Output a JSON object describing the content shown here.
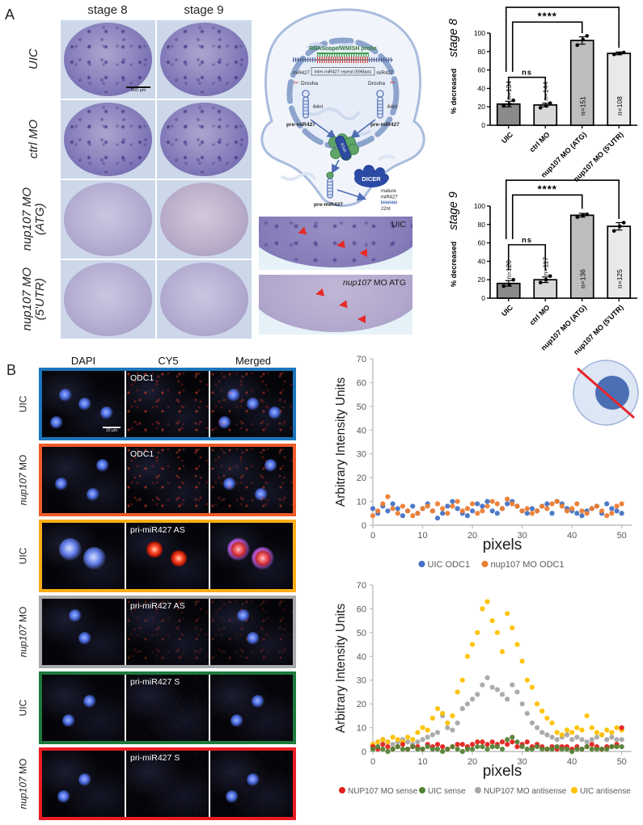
{
  "panel_a": {
    "label": "A",
    "col_headers": [
      "stage 8",
      "stage 9"
    ],
    "row_labels": [
      [
        "UIC"
      ],
      [
        "ctrl MO"
      ],
      [
        "nup107 MO",
        "(ATG)"
      ],
      [
        "nup107 MO",
        "(5'UTR)"
      ]
    ],
    "scale_bar": "500 μm",
    "diagram": {
      "probe_label": "RNAScope/WMISH probe",
      "mir_left": "miR427",
      "repeat_label": "Inter-miR427 repeat (596bps)",
      "mir_right": "miR427",
      "scissors_glyph": "✂",
      "drosha_left": "Drosha",
      "drosha_right": "Drosha",
      "nt64_left": "64nt",
      "nt64_right": "64nt",
      "premir_left": "pre-miR427",
      "premir_right": "pre-miR427",
      "exportin": "XPO5",
      "premir_cyto": "pre-miR427",
      "dicer": "DICER",
      "mature_1": "mature",
      "mature_2": "miR427",
      "nt22": "22nt"
    },
    "insets": [
      {
        "title": "UIC"
      },
      {
        "title_italic": "nup107",
        "title_rest": " MO ATG"
      }
    ]
  },
  "panel_b": {
    "label": "B",
    "col_headers": [
      "DAPI",
      "CY5",
      "Merged"
    ],
    "scale_bar": "10 μm",
    "rows": [
      {
        "label": "UIC",
        "border": "#1b75bc",
        "probe": "ODC1"
      },
      {
        "label": "nup107 MO",
        "border": "#f15a29",
        "probe": "ODC1"
      },
      {
        "label": "UIC",
        "border": "#fbae17",
        "probe": "pri-miR427 AS"
      },
      {
        "label": "nup107 MO",
        "border": "#a7a9ac",
        "probe": "pri-miR427 AS"
      },
      {
        "label": "UIC",
        "border": "#1e7a3c",
        "probe": "pri-miR427 S"
      },
      {
        "label": "nup107 MO",
        "border": "#ec1c24",
        "probe": "pri-miR427 S"
      }
    ]
  },
  "chart_data": [
    {
      "id": "stage8",
      "type": "bar",
      "title": "stage 8",
      "ylabel": "% decreased",
      "ylim": [
        0,
        100
      ],
      "yticks": [
        0,
        20,
        40,
        60,
        80,
        100
      ],
      "categories": [
        "UIC",
        "ctrl MO",
        "nup107 MO (ATG)",
        "nup107 MO (5'UTR)"
      ],
      "values": [
        23,
        22,
        92,
        78
      ],
      "errors": [
        3,
        2,
        4,
        1.5
      ],
      "points": [
        [
          21,
          23,
          27
        ],
        [
          19,
          21,
          24
        ],
        [
          87,
          93,
          97
        ],
        [
          77,
          78,
          79
        ]
      ],
      "n_labels": [
        "n=134",
        "n=144",
        "n=151",
        "n=108"
      ],
      "bar_colors": [
        "#8a8a8a",
        "#d8d8d8",
        "#bdbdbd",
        "#e9e9e9"
      ],
      "comparisons": [
        {
          "from": 0,
          "to": 1,
          "label": "ns",
          "y": 52,
          "drop_from": 28,
          "drop_to": 28
        },
        {
          "from": 0,
          "to": 2,
          "label": "****",
          "y": 112,
          "drop_from": 58,
          "drop_to": 100
        },
        {
          "from": 0,
          "to": 3,
          "label": "****",
          "y": 128,
          "drop_from": 58,
          "drop_to": 84
        }
      ]
    },
    {
      "id": "stage9",
      "type": "bar",
      "title": "stage 9",
      "ylabel": "% decreased",
      "ylim": [
        0,
        100
      ],
      "yticks": [
        0,
        20,
        40,
        60,
        80,
        100
      ],
      "categories": [
        "UIC",
        "ctrl MO",
        "nup107 MO (ATG)",
        "nup107 MO (5'UTR)"
      ],
      "values": [
        16,
        20,
        90,
        78
      ],
      "errors": [
        3,
        3,
        2,
        4
      ],
      "points": [
        [
          13,
          15,
          20
        ],
        [
          17,
          20,
          24
        ],
        [
          88,
          90,
          91
        ],
        [
          73,
          78,
          82
        ]
      ],
      "n_labels": [
        "n=120",
        "n=117",
        "n=136",
        "n=125"
      ],
      "bar_colors": [
        "#8a8a8a",
        "#d8d8d8",
        "#bdbdbd",
        "#e9e9e9"
      ],
      "comparisons": [
        {
          "from": 0,
          "to": 1,
          "label": "ns",
          "y": 58,
          "drop_from": 30,
          "drop_to": 30
        },
        {
          "from": 0,
          "to": 2,
          "label": "****",
          "y": 112,
          "drop_from": 64,
          "drop_to": 97
        },
        {
          "from": 0,
          "to": 3,
          "label": "****",
          "y": 128,
          "drop_from": 64,
          "drop_to": 86
        }
      ]
    },
    {
      "id": "odc1",
      "type": "scatter",
      "xlabel": "pixels",
      "ylabel": "Arbitrary Intensity Units",
      "xlim": [
        0,
        52
      ],
      "ylim": [
        0,
        70
      ],
      "xticks": [
        0,
        10,
        20,
        30,
        40,
        50
      ],
      "yticks": [
        0,
        10,
        20,
        30,
        40,
        50,
        60,
        70
      ],
      "x_start": 0,
      "x_step": 1,
      "legend_position": "bottom",
      "draw_order": [
        0,
        1
      ],
      "series": [
        {
          "name": "UIC ODC1",
          "color": "#4472c4",
          "y": [
            7,
            5,
            8,
            6,
            9,
            7,
            4,
            6,
            8,
            5,
            7,
            9,
            6,
            3,
            5,
            8,
            10,
            7,
            5,
            4,
            6,
            9,
            8,
            10,
            6,
            5,
            7,
            9,
            10,
            8,
            6,
            5,
            7,
            6,
            8,
            9,
            5,
            10,
            9,
            7,
            6,
            5,
            4,
            6,
            7,
            8,
            5,
            9,
            7,
            6,
            5
          ]
        },
        {
          "name": "nup107 MO ODC1",
          "color": "#ed7d31",
          "y": [
            4,
            6,
            9,
            12,
            7,
            5,
            8,
            6,
            4,
            5,
            7,
            8,
            6,
            9,
            7,
            5,
            8,
            10,
            6,
            7,
            9,
            5,
            6,
            8,
            10,
            9,
            7,
            11,
            9,
            8,
            6,
            7,
            5,
            6,
            8,
            7,
            9,
            10,
            8,
            6,
            7,
            9,
            6,
            5,
            7,
            8,
            6,
            4,
            5,
            8,
            9
          ]
        }
      ]
    },
    {
      "id": "primir427",
      "type": "scatter",
      "xlabel": "pixels",
      "ylabel": "Arbitrary Intensity Units",
      "xlim": [
        0,
        52
      ],
      "ylim": [
        0,
        70
      ],
      "xticks": [
        0,
        10,
        20,
        30,
        40,
        50
      ],
      "yticks": [
        0,
        10,
        20,
        30,
        40,
        50,
        60,
        70
      ],
      "x_start": 0,
      "x_step": 1,
      "legend_position": "bottom",
      "draw_order": [
        2,
        3,
        0,
        1
      ],
      "series": [
        {
          "name": "NUP107 MO sense",
          "color": "#e3211c",
          "y": [
            2,
            1,
            3,
            2,
            1,
            2,
            3,
            1,
            2,
            2,
            1,
            3,
            2,
            3,
            2,
            1,
            2,
            3,
            3,
            2,
            3,
            4,
            4,
            3,
            4,
            3,
            4,
            3,
            4,
            2,
            3,
            4,
            2,
            3,
            2,
            1,
            2,
            1,
            2,
            2,
            1,
            2,
            1,
            2,
            3,
            2,
            1,
            2,
            2,
            3,
            10
          ]
        },
        {
          "name": "UIC sense",
          "color": "#548235",
          "y": [
            1,
            2,
            1,
            0,
            1,
            2,
            1,
            1,
            2,
            1,
            1,
            2,
            1,
            1,
            0,
            1,
            2,
            1,
            0,
            1,
            1,
            2,
            2,
            1,
            2,
            2,
            1,
            5,
            6,
            4,
            2,
            1,
            1,
            2,
            1,
            1,
            1,
            2,
            1,
            1,
            0,
            1,
            1,
            2,
            1,
            1,
            1,
            1,
            2,
            2,
            2
          ]
        },
        {
          "name": "NUP107 MO antisense",
          "color": "#a6a6a6",
          "y": [
            3,
            4,
            5,
            4,
            3,
            4,
            5,
            4,
            3,
            4,
            5,
            6,
            7,
            8,
            15,
            10,
            9,
            12,
            18,
            20,
            22,
            24,
            28,
            31,
            27,
            26,
            24,
            22,
            28,
            25,
            20,
            16,
            12,
            10,
            8,
            7,
            6,
            5,
            6,
            7,
            5,
            6,
            5,
            4,
            5,
            6,
            7,
            5,
            6,
            5,
            5
          ]
        },
        {
          "name": "UIC antisense",
          "color": "#ffc000",
          "y": [
            3,
            4,
            5,
            4,
            6,
            5,
            4,
            6,
            5,
            8,
            10,
            9,
            14,
            18,
            16,
            12,
            15,
            25,
            30,
            40,
            45,
            50,
            60,
            63,
            55,
            50,
            42,
            58,
            52,
            45,
            38,
            30,
            27,
            20,
            17,
            14,
            12,
            8,
            7,
            9,
            8,
            10,
            9,
            15,
            10,
            8,
            7,
            9,
            8,
            10,
            9
          ]
        }
      ]
    }
  ]
}
